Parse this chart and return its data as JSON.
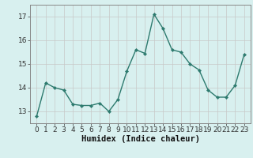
{
  "x": [
    0,
    1,
    2,
    3,
    4,
    5,
    6,
    7,
    8,
    9,
    10,
    11,
    12,
    13,
    14,
    15,
    16,
    17,
    18,
    19,
    20,
    21,
    22,
    23
  ],
  "y": [
    12.8,
    14.2,
    14.0,
    13.9,
    13.3,
    13.25,
    13.25,
    13.35,
    13.0,
    13.5,
    14.7,
    15.6,
    15.45,
    17.1,
    16.5,
    15.6,
    15.5,
    15.0,
    14.75,
    13.9,
    13.6,
    13.6,
    14.1,
    15.4
  ],
  "line_color": "#2d7a6e",
  "marker": "D",
  "marker_size": 2.2,
  "bg_color": "#d8f0ef",
  "grid_major_color": "#c8c8c8",
  "grid_minor_color": "#e0e0e0",
  "xlabel": "Humidex (Indice chaleur)",
  "ylim": [
    12.5,
    17.5
  ],
  "yticks": [
    13,
    14,
    15,
    16,
    17
  ],
  "xlabel_fontsize": 7.5,
  "tick_fontsize": 6.5,
  "line_width": 1.0,
  "spine_color": "#888888"
}
